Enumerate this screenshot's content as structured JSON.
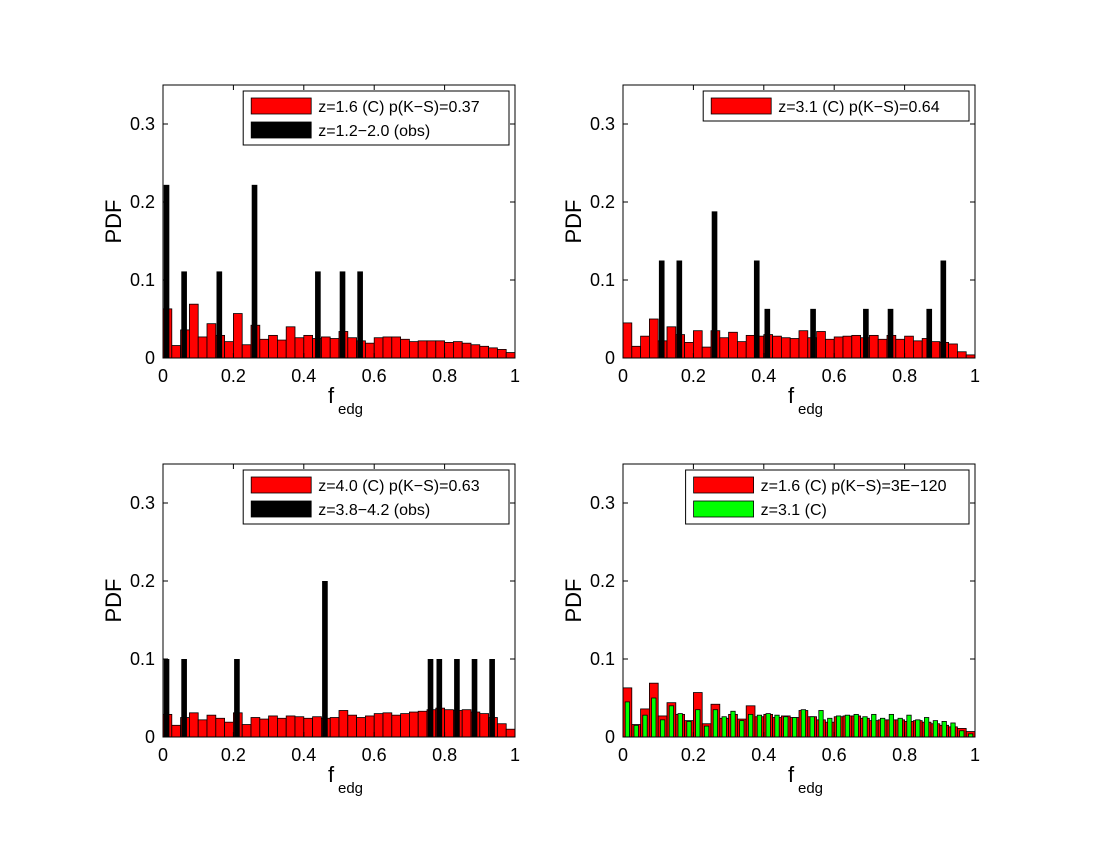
{
  "figure": {
    "panel_count": 4
  },
  "colors": {
    "red": "#ff0000",
    "black": "#000000",
    "green": "#00ff00",
    "outline": "#000000"
  },
  "chart_data": [
    {
      "type": "bar",
      "panel": "top-left",
      "xlabel_main": "f",
      "xlabel_sub": "edg",
      "ylabel": "PDF",
      "xlim": [
        0,
        1
      ],
      "ylim": [
        0,
        0.35
      ],
      "xticks": [
        0,
        0.2,
        0.4,
        0.6,
        0.8,
        1
      ],
      "xtick_labels": [
        "0",
        "0.2",
        "0.4",
        "0.6",
        "0.8",
        "1"
      ],
      "yticks": [
        0,
        0.1,
        0.2,
        0.3
      ],
      "ytick_labels": [
        "0",
        "0.1",
        "0.2",
        "0.3"
      ],
      "legend": {
        "position": "top-right",
        "entries": [
          "z=1.6 (C) p(K−S)=0.37",
          "z=1.2−2.0 (obs)"
        ]
      },
      "series": [
        {
          "name": "z=1.6 (C) p(K−S)=0.37",
          "color": "#ff0000",
          "style": "wide",
          "bin_width": 0.025,
          "x": [
            0.0125,
            0.0375,
            0.0625,
            0.0875,
            0.1125,
            0.1375,
            0.1625,
            0.1875,
            0.2125,
            0.2375,
            0.2625,
            0.2875,
            0.3125,
            0.3375,
            0.3625,
            0.3875,
            0.4125,
            0.4375,
            0.4625,
            0.4875,
            0.5125,
            0.5375,
            0.5625,
            0.5875,
            0.6125,
            0.6375,
            0.6625,
            0.6875,
            0.7125,
            0.7375,
            0.7625,
            0.7875,
            0.8125,
            0.8375,
            0.8625,
            0.8875,
            0.9125,
            0.9375,
            0.9625,
            0.9875
          ],
          "values": [
            0.063,
            0.016,
            0.036,
            0.069,
            0.027,
            0.044,
            0.029,
            0.021,
            0.057,
            0.017,
            0.042,
            0.024,
            0.029,
            0.023,
            0.04,
            0.026,
            0.029,
            0.025,
            0.027,
            0.025,
            0.034,
            0.026,
            0.022,
            0.019,
            0.026,
            0.027,
            0.027,
            0.024,
            0.021,
            0.022,
            0.022,
            0.022,
            0.02,
            0.021,
            0.019,
            0.017,
            0.015,
            0.013,
            0.011,
            0.007
          ]
        },
        {
          "name": "z=1.2−2.0 (obs)",
          "color": "#000000",
          "style": "narrow",
          "bin_width": 0.016,
          "x": [
            0.01,
            0.06,
            0.16,
            0.26,
            0.44,
            0.51,
            0.56
          ],
          "values": [
            0.222,
            0.111,
            0.111,
            0.222,
            0.111,
            0.111,
            0.111
          ]
        }
      ]
    },
    {
      "type": "bar",
      "panel": "top-right",
      "xlabel_main": "f",
      "xlabel_sub": "edg",
      "ylabel": "PDF",
      "xlim": [
        0,
        1
      ],
      "ylim": [
        0,
        0.35
      ],
      "xticks": [
        0,
        0.2,
        0.4,
        0.6,
        0.8,
        1
      ],
      "xtick_labels": [
        "0",
        "0.2",
        "0.4",
        "0.6",
        "0.8",
        "1"
      ],
      "yticks": [
        0,
        0.1,
        0.2,
        0.3
      ],
      "ytick_labels": [
        "0",
        "0.1",
        "0.2",
        "0.3"
      ],
      "legend": {
        "position": "top-right",
        "entries": [
          "z=3.1 (C) p(K−S)=0.64"
        ]
      },
      "series": [
        {
          "name": "z=3.1 (C) p(K−S)=0.64",
          "color": "#ff0000",
          "style": "wide",
          "bin_width": 0.025,
          "x": [
            0.0125,
            0.0375,
            0.0625,
            0.0875,
            0.1125,
            0.1375,
            0.1625,
            0.1875,
            0.2125,
            0.2375,
            0.2625,
            0.2875,
            0.3125,
            0.3375,
            0.3625,
            0.3875,
            0.4125,
            0.4375,
            0.4625,
            0.4875,
            0.5125,
            0.5375,
            0.5625,
            0.5875,
            0.6125,
            0.6375,
            0.6625,
            0.6875,
            0.7125,
            0.7375,
            0.7625,
            0.7875,
            0.8125,
            0.8375,
            0.8625,
            0.8875,
            0.9125,
            0.9375,
            0.9625,
            0.9875
          ],
          "values": [
            0.045,
            0.015,
            0.028,
            0.05,
            0.022,
            0.04,
            0.03,
            0.02,
            0.035,
            0.014,
            0.035,
            0.026,
            0.033,
            0.021,
            0.029,
            0.028,
            0.03,
            0.028,
            0.026,
            0.025,
            0.035,
            0.026,
            0.034,
            0.024,
            0.027,
            0.028,
            0.029,
            0.026,
            0.029,
            0.024,
            0.029,
            0.024,
            0.028,
            0.022,
            0.025,
            0.021,
            0.02,
            0.018,
            0.008,
            0.004
          ]
        },
        {
          "name": "",
          "color": "#000000",
          "style": "narrow",
          "bin_width": 0.016,
          "x": [
            0.11,
            0.16,
            0.26,
            0.38,
            0.41,
            0.54,
            0.69,
            0.76,
            0.87,
            0.91
          ],
          "values": [
            0.125,
            0.125,
            0.188,
            0.125,
            0.063,
            0.063,
            0.063,
            0.063,
            0.063,
            0.125
          ]
        }
      ]
    },
    {
      "type": "bar",
      "panel": "bottom-left",
      "xlabel_main": "f",
      "xlabel_sub": "edg",
      "ylabel": "PDF",
      "xlim": [
        0,
        1
      ],
      "ylim": [
        0,
        0.35
      ],
      "xticks": [
        0,
        0.2,
        0.4,
        0.6,
        0.8,
        1
      ],
      "xtick_labels": [
        "0",
        "0.2",
        "0.4",
        "0.6",
        "0.8",
        "1"
      ],
      "yticks": [
        0,
        0.1,
        0.2,
        0.3
      ],
      "ytick_labels": [
        "0",
        "0.1",
        "0.2",
        "0.3"
      ],
      "legend": {
        "position": "top-right",
        "entries": [
          "z=4.0 (C) p(K−S)=0.63",
          "z=3.8−4.2 (obs)"
        ]
      },
      "series": [
        {
          "name": "z=4.0 (C) p(K−S)=0.63",
          "color": "#ff0000",
          "style": "wide",
          "bin_width": 0.025,
          "x": [
            0.0125,
            0.0375,
            0.0625,
            0.0875,
            0.1125,
            0.1375,
            0.1625,
            0.1875,
            0.2125,
            0.2375,
            0.2625,
            0.2875,
            0.3125,
            0.3375,
            0.3625,
            0.3875,
            0.4125,
            0.4375,
            0.4625,
            0.4875,
            0.5125,
            0.5375,
            0.5625,
            0.5875,
            0.6125,
            0.6375,
            0.6625,
            0.6875,
            0.7125,
            0.7375,
            0.7625,
            0.7875,
            0.8125,
            0.8375,
            0.8625,
            0.8875,
            0.9125,
            0.9375,
            0.9625,
            0.9875
          ],
          "values": [
            0.029,
            0.015,
            0.025,
            0.031,
            0.022,
            0.028,
            0.024,
            0.019,
            0.031,
            0.016,
            0.025,
            0.023,
            0.027,
            0.024,
            0.027,
            0.026,
            0.024,
            0.026,
            0.024,
            0.025,
            0.034,
            0.028,
            0.025,
            0.027,
            0.03,
            0.031,
            0.028,
            0.03,
            0.032,
            0.033,
            0.035,
            0.037,
            0.035,
            0.034,
            0.035,
            0.032,
            0.03,
            0.025,
            0.017,
            0.01
          ]
        },
        {
          "name": "z=3.8−4.2 (obs)",
          "color": "#000000",
          "style": "narrow",
          "bin_width": 0.016,
          "x": [
            0.01,
            0.06,
            0.21,
            0.46,
            0.76,
            0.785,
            0.835,
            0.885,
            0.935
          ],
          "values": [
            0.1,
            0.1,
            0.1,
            0.2,
            0.1,
            0.1,
            0.1,
            0.1,
            0.1
          ]
        }
      ]
    },
    {
      "type": "bar",
      "panel": "bottom-right",
      "xlabel_main": "f",
      "xlabel_sub": "edg",
      "ylabel": "PDF",
      "xlim": [
        0,
        1
      ],
      "ylim": [
        0,
        0.35
      ],
      "xticks": [
        0,
        0.2,
        0.4,
        0.6,
        0.8,
        1
      ],
      "xtick_labels": [
        "0",
        "0.2",
        "0.4",
        "0.6",
        "0.8",
        "1"
      ],
      "yticks": [
        0,
        0.1,
        0.2,
        0.3
      ],
      "ytick_labels": [
        "0",
        "0.1",
        "0.2",
        "0.3"
      ],
      "legend": {
        "position": "top-right",
        "entries": [
          "z=1.6 (C) p(K−S)=3E−120",
          "z=3.1 (C)"
        ]
      },
      "series": [
        {
          "name": "z=1.6 (C) p(K−S)=3E−120",
          "color": "#ff0000",
          "style": "wide",
          "bin_width": 0.025,
          "x": [
            0.0125,
            0.0375,
            0.0625,
            0.0875,
            0.1125,
            0.1375,
            0.1625,
            0.1875,
            0.2125,
            0.2375,
            0.2625,
            0.2875,
            0.3125,
            0.3375,
            0.3625,
            0.3875,
            0.4125,
            0.4375,
            0.4625,
            0.4875,
            0.5125,
            0.5375,
            0.5625,
            0.5875,
            0.6125,
            0.6375,
            0.6625,
            0.6875,
            0.7125,
            0.7375,
            0.7625,
            0.7875,
            0.8125,
            0.8375,
            0.8625,
            0.8875,
            0.9125,
            0.9375,
            0.9625,
            0.9875
          ],
          "values": [
            0.063,
            0.016,
            0.036,
            0.069,
            0.027,
            0.044,
            0.029,
            0.021,
            0.057,
            0.017,
            0.042,
            0.024,
            0.029,
            0.023,
            0.04,
            0.026,
            0.029,
            0.025,
            0.027,
            0.025,
            0.034,
            0.026,
            0.022,
            0.019,
            0.026,
            0.027,
            0.027,
            0.024,
            0.021,
            0.022,
            0.022,
            0.022,
            0.02,
            0.021,
            0.019,
            0.017,
            0.015,
            0.013,
            0.011,
            0.007
          ]
        },
        {
          "name": "z=3.1 (C)",
          "color": "#00ff00",
          "style": "overlay",
          "bin_width": 0.0125,
          "x": [
            0.0125,
            0.0375,
            0.0625,
            0.0875,
            0.1125,
            0.1375,
            0.1625,
            0.1875,
            0.2125,
            0.2375,
            0.2625,
            0.2875,
            0.3125,
            0.3375,
            0.3625,
            0.3875,
            0.4125,
            0.4375,
            0.4625,
            0.4875,
            0.5125,
            0.5375,
            0.5625,
            0.5875,
            0.6125,
            0.6375,
            0.6625,
            0.6875,
            0.7125,
            0.7375,
            0.7625,
            0.7875,
            0.8125,
            0.8375,
            0.8625,
            0.8875,
            0.9125,
            0.9375,
            0.9625,
            0.9875
          ],
          "values": [
            0.045,
            0.015,
            0.028,
            0.05,
            0.022,
            0.04,
            0.03,
            0.02,
            0.035,
            0.014,
            0.035,
            0.026,
            0.033,
            0.021,
            0.029,
            0.028,
            0.03,
            0.028,
            0.026,
            0.025,
            0.035,
            0.026,
            0.034,
            0.024,
            0.027,
            0.028,
            0.029,
            0.026,
            0.029,
            0.024,
            0.029,
            0.024,
            0.028,
            0.022,
            0.025,
            0.021,
            0.02,
            0.018,
            0.008,
            0.004
          ]
        }
      ]
    }
  ]
}
